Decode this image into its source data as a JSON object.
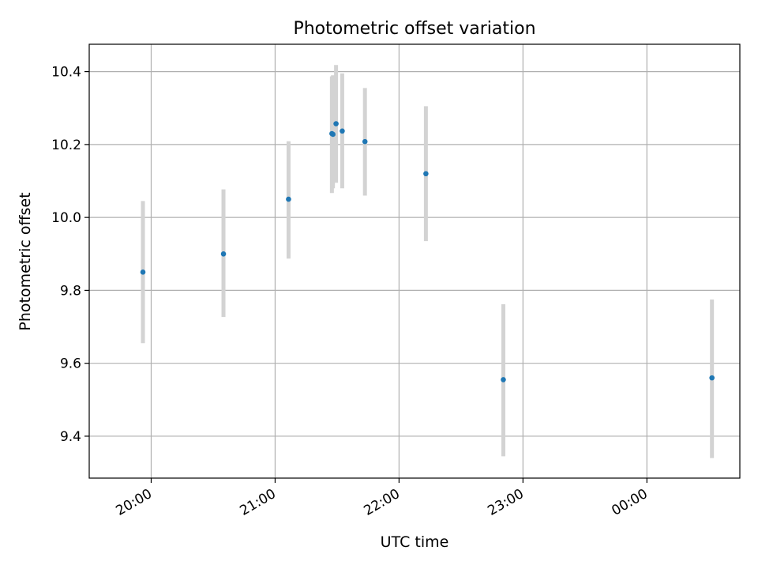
{
  "chart_data": {
    "type": "scatter",
    "title": "Photometric offset variation",
    "xlabel": "UTC time",
    "ylabel": "Photometric offset",
    "x_axis_kind": "time",
    "xlim": [
      "2023-01-01T19:30:00",
      "2023-01-02T00:45:00"
    ],
    "ylim": [
      9.285,
      10.475
    ],
    "x_ticks": [
      {
        "value": "2023-01-01T20:00:00",
        "label": "20:00"
      },
      {
        "value": "2023-01-01T21:00:00",
        "label": "21:00"
      },
      {
        "value": "2023-01-01T22:00:00",
        "label": "22:00"
      },
      {
        "value": "2023-01-01T23:00:00",
        "label": "23:00"
      },
      {
        "value": "2023-01-02T00:00:00",
        "label": "00:00"
      }
    ],
    "y_ticks": [
      {
        "value": 9.4,
        "label": "9.4"
      },
      {
        "value": 9.6,
        "label": "9.6"
      },
      {
        "value": 9.8,
        "label": "9.8"
      },
      {
        "value": 10.0,
        "label": "10.0"
      },
      {
        "value": 10.2,
        "label": "10.2"
      },
      {
        "value": 10.4,
        "label": "10.4"
      }
    ],
    "grid": true,
    "marker_color": "#1f77b4",
    "errorbar_color": "#d3d3d3",
    "points": [
      {
        "t": "2023-01-01T19:56:00",
        "y": 9.85,
        "y_low": 9.655,
        "y_high": 10.045
      },
      {
        "t": "2023-01-01T20:35:00",
        "y": 9.9,
        "y_low": 9.727,
        "y_high": 10.077
      },
      {
        "t": "2023-01-01T21:06:30",
        "y": 10.05,
        "y_low": 9.887,
        "y_high": 10.209
      },
      {
        "t": "2023-01-01T21:27:30",
        "y": 10.23,
        "y_low": 10.067,
        "y_high": 10.387
      },
      {
        "t": "2023-01-01T21:28:00",
        "y": 10.228,
        "y_low": 10.08,
        "y_high": 10.39
      },
      {
        "t": "2023-01-01T21:29:30",
        "y": 10.257,
        "y_low": 10.095,
        "y_high": 10.418
      },
      {
        "t": "2023-01-01T21:32:30",
        "y": 10.237,
        "y_low": 10.08,
        "y_high": 10.395
      },
      {
        "t": "2023-01-01T21:43:30",
        "y": 10.208,
        "y_low": 10.06,
        "y_high": 10.355
      },
      {
        "t": "2023-01-01T22:13:00",
        "y": 10.12,
        "y_low": 9.935,
        "y_high": 10.305
      },
      {
        "t": "2023-01-01T22:50:30",
        "y": 9.555,
        "y_low": 9.345,
        "y_high": 9.762
      },
      {
        "t": "2023-01-02T00:31:30",
        "y": 9.56,
        "y_low": 9.34,
        "y_high": 9.775
      }
    ]
  }
}
